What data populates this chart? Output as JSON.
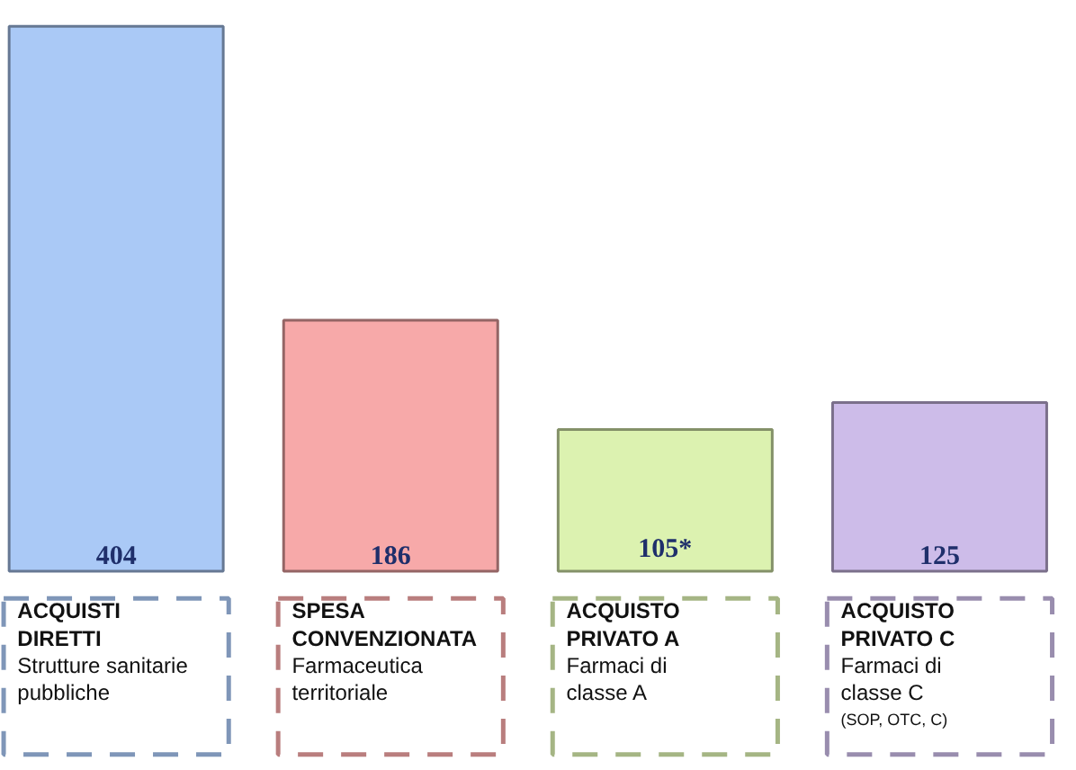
{
  "chart_data": {
    "type": "bar",
    "categories": [
      "ACQUISTI\nDIRETTI\nStrutture sanitarie\npubbliche",
      "SPESA\nCONVENZIONATA\nFarmaceutica\nterritoriale",
      "ACQUISTO\nPRIVATO A\nFarmaci di\nclasse A",
      "ACQUISTO\nPRIVATO C\nFarmaci di\nclasse C\n(SOP, OTC, C)"
    ],
    "values": [
      404,
      186,
      105,
      125
    ],
    "value_labels": [
      "404",
      "186",
      "105*",
      "125"
    ],
    "colors": [
      "#aac9f6",
      "#f7a9a9",
      "#dcf2b0",
      "#cdbce9"
    ]
  }
}
